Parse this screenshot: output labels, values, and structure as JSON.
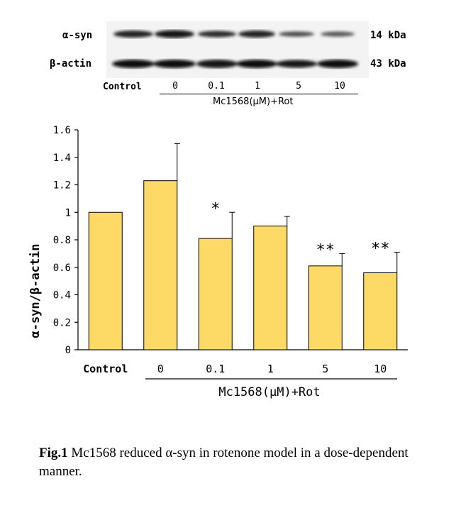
{
  "western_blot": {
    "rows": [
      {
        "protein": "α-syn",
        "size": "14 kDa"
      },
      {
        "protein": "β-actin",
        "size": "43 kDa"
      }
    ],
    "lanes": [
      "Control",
      "0",
      "0.1",
      "1",
      "5",
      "10"
    ],
    "treatment": "Mc1568(μM)+Rot"
  },
  "chart_data": {
    "type": "bar",
    "categories": [
      "Control",
      "0",
      "0.1",
      "1",
      "5",
      "10"
    ],
    "values": [
      1.0,
      1.23,
      0.81,
      0.9,
      0.61,
      0.56
    ],
    "errors": [
      0,
      0.27,
      0.19,
      0.07,
      0.09,
      0.15
    ],
    "significance": [
      "",
      "",
      "*",
      "",
      "**",
      "**"
    ],
    "ylabel": "α-syn/β-actin",
    "yticks": [
      "0",
      "0.2",
      "0.4",
      "0.6",
      "0.8",
      "1",
      "1.2",
      "1.4",
      "1.6"
    ],
    "ylim": [
      0,
      1.6
    ],
    "xgroup_label": "Mc1568(μM)+Rot",
    "bar_color": "#FDD966",
    "grid": false
  },
  "caption": {
    "label": "Fig.1",
    "text": " Mc1568 reduced α-syn in rotenone model in a dose-dependent manner."
  }
}
